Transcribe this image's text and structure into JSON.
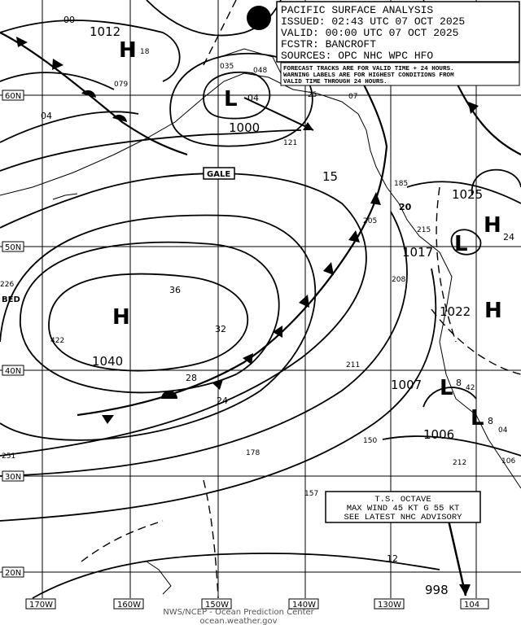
{
  "header": {
    "lines": [
      "PACIFIC SURFACE ANALYSIS",
      "ISSUED: 02:43 UTC 07 OCT 2025",
      "VALID:  00:00 UTC 07 OCT 2025",
      "FCSTR:  BANCROFT",
      "SOURCES: OPC NHC WPC HFO"
    ]
  },
  "note": [
    "FORECAST TRACKS ARE FOR VALID TIME + 24 HOURS.",
    "WARNING LABELS ARE FOR HIGHEST CONDITIONS FROM",
    "VALID TIME THROUGH 24 HOURS."
  ],
  "latitudes": [
    "60N",
    "50N",
    "40N",
    "30N",
    "20N"
  ],
  "longitudes": [
    "170W",
    "160W",
    "150W",
    "140W",
    "130W"
  ],
  "systems": [
    {
      "symbol": "H",
      "pressure": "1012",
      "forecast": "18"
    },
    {
      "symbol": "L",
      "pressure": "1000",
      "forecast": "04"
    },
    {
      "symbol": "H",
      "pressure": "1040"
    },
    {
      "symbol": "H",
      "pressure": "1025",
      "forecast": "24"
    },
    {
      "symbol": "L",
      "pressure": "1017"
    },
    {
      "symbol": "H",
      "pressure": "1022"
    },
    {
      "symbol": "L",
      "pressure": "1007",
      "forecast": "8"
    },
    {
      "symbol": "L",
      "pressure": "1006",
      "forecast": "8"
    }
  ],
  "isobar_labels": [
    "36",
    "32",
    "28",
    "24",
    "20",
    "12",
    "15",
    "00",
    "04"
  ],
  "station_labels": [
    "048",
    "035",
    "079",
    "25",
    "07",
    "121",
    "185",
    "205",
    "215",
    "208",
    "211",
    "150",
    "178",
    "157",
    "212",
    "106",
    "251",
    "422",
    "226",
    "42",
    "04"
  ],
  "warning": "GALE",
  "place_label": "BED",
  "storm": {
    "lines": [
      "T.S. OCTAVE",
      "MAX WIND 45 KT G 55 KT",
      "SEE LATEST NHC ADVISORY"
    ],
    "pressure": "998",
    "forecast_label": "104"
  },
  "footer": [
    "NWS/NCEP - Ocean Prediction Center",
    "ocean.weather.gov"
  ]
}
